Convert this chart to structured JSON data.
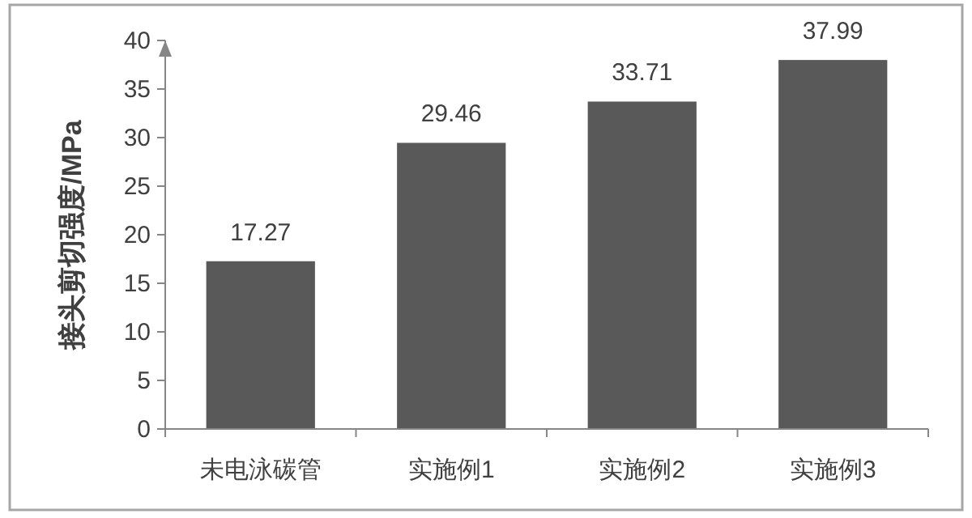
{
  "chart_data": {
    "type": "bar",
    "ylabel": "接头剪切强度/MPa",
    "categories": [
      "未电泳碳管",
      "实施例1",
      "实施例2",
      "实施例3"
    ],
    "values": [
      17.27,
      29.46,
      33.71,
      37.99
    ],
    "color": "#595959",
    "ylim": [
      0,
      40
    ],
    "yticks": [
      0,
      5,
      10,
      15,
      20,
      25,
      30,
      35,
      40
    ],
    "data_labels": true,
    "grid": false
  }
}
